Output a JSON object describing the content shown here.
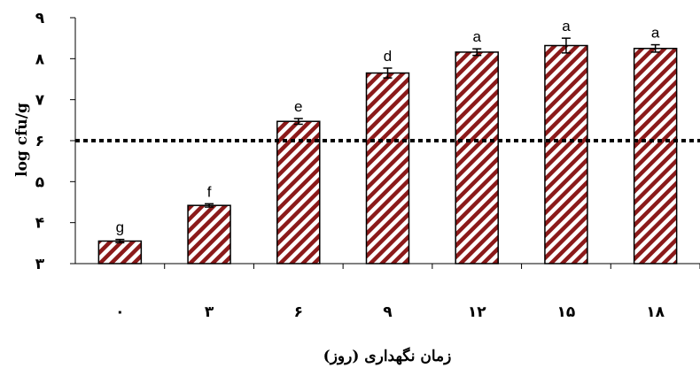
{
  "chart_data": {
    "type": "bar",
    "categories": [
      "۰",
      "۳",
      "۶",
      "۹",
      "۱۲",
      "۱۵",
      "۱۸"
    ],
    "values": [
      3.55,
      4.42,
      6.47,
      7.65,
      8.16,
      8.32,
      8.25
    ],
    "errors": [
      0.04,
      0.04,
      0.07,
      0.12,
      0.08,
      0.18,
      0.09
    ],
    "letters": [
      "g",
      "f",
      "e",
      "d",
      "a",
      "a",
      "a"
    ],
    "ylim": [
      3,
      9
    ],
    "yticks": [
      {
        "value": 3,
        "label": "۳"
      },
      {
        "value": 4,
        "label": "۴"
      },
      {
        "value": 5,
        "label": "۵"
      },
      {
        "value": 6,
        "label": "۶"
      },
      {
        "value": 7,
        "label": "۷"
      },
      {
        "value": 8,
        "label": "۸"
      },
      {
        "value": 9,
        "label": "۹"
      }
    ],
    "reference_line": 6,
    "xlabel": "زمان نگهداری (روز)",
    "ylabel": "log cfu/g",
    "bar_color": "#8b1a1a",
    "grid": false
  }
}
